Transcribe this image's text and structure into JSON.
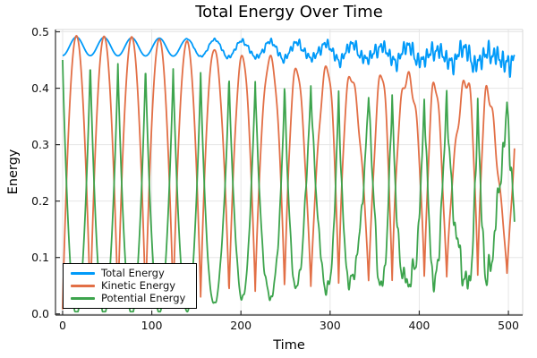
{
  "figure": {
    "background": "#ffffff",
    "grid_color": "#e6e6e6",
    "spine_dark": "#2f2f2f",
    "spine_light": "#d9d9d9",
    "tick_color": "#2f2f2f",
    "text_color": "#000000"
  },
  "chart_data": {
    "type": "line",
    "title": "Total Energy Over Time",
    "xlabel": "Time",
    "ylabel": "Energy",
    "xlim": [
      -8,
      516
    ],
    "ylim": [
      -0.002,
      0.504
    ],
    "x_ticks": [
      0,
      100,
      200,
      300,
      400,
      500
    ],
    "x_tick_labels": [
      "0",
      "100",
      "200",
      "300",
      "400",
      "500"
    ],
    "y_ticks": [
      0.0,
      0.1,
      0.2,
      0.3,
      0.4,
      0.5
    ],
    "y_tick_labels": [
      "0.0",
      "0.1",
      "0.2",
      "0.3",
      "0.4",
      "0.5"
    ],
    "grid": true,
    "legend_position": "bottom-left",
    "t_range": [
      0,
      507
    ],
    "sample_step": 0.4,
    "synthesis": {
      "period": 31,
      "kinetic_peak_offset": 15.5,
      "wave_exponent": 0.9,
      "bump_exponent": 1.0,
      "chaos_start": 130,
      "chaos_ramp": 380,
      "min_value": 0.004,
      "phase_wobble": {
        "amp": 0.45,
        "period": 53,
        "phase": 1.2
      },
      "amp_mod": {
        "amp": 0.035,
        "period": 71,
        "phase": 0.4
      },
      "ripple": {
        "amp": 0.018,
        "period": 8.6,
        "phase": 0.5
      },
      "total_wobbles": [
        {
          "amp": 0.012,
          "period": 5.3,
          "phase": 0.7
        },
        {
          "amp": 0.009,
          "period": 3.17,
          "phase": 2.9
        }
      ],
      "total_spike": {
        "amp": 0.016,
        "period": 21.3,
        "phase": 4.0,
        "exponent": 8
      },
      "total_base_envelope": [
        [
          0,
          0.458
        ],
        [
          120,
          0.457
        ],
        [
          250,
          0.454
        ],
        [
          380,
          0.45
        ],
        [
          507,
          0.4445
        ]
      ],
      "total_bump_envelope": [
        [
          0,
          0.033
        ],
        [
          150,
          0.031
        ],
        [
          300,
          0.027
        ],
        [
          507,
          0.022
        ]
      ]
    },
    "series": [
      {
        "name": "Total Energy",
        "color": "#009af9",
        "role": "total",
        "observed_range_start": [
          0.455,
          0.491
        ],
        "observed_range_end": [
          0.43,
          0.475
        ]
      },
      {
        "name": "Kinetic Energy",
        "color": "#e26f46",
        "role": "kinetic",
        "peak_envelope": [
          [
            15,
            0.493
          ],
          [
            80,
            0.491
          ],
          [
            140,
            0.483
          ],
          [
            172,
            0.468
          ],
          [
            233,
            0.45
          ],
          [
            295,
            0.431
          ],
          [
            360,
            0.423
          ],
          [
            430,
            0.414
          ],
          [
            507,
            0.406
          ]
        ],
        "trough_envelope": [
          [
            0,
            0.008
          ],
          [
            100,
            0.018
          ],
          [
            200,
            0.038
          ],
          [
            300,
            0.052
          ],
          [
            400,
            0.062
          ],
          [
            507,
            0.072
          ]
        ]
      },
      {
        "name": "Potential Energy",
        "color": "#3da44d",
        "role": "potential",
        "peak_envelope": [
          [
            0,
            0.454
          ],
          [
            100,
            0.44
          ],
          [
            200,
            0.418
          ],
          [
            300,
            0.395
          ],
          [
            400,
            0.378
          ],
          [
            507,
            0.365
          ]
        ],
        "derived": "total_minus_kinetic"
      }
    ]
  }
}
